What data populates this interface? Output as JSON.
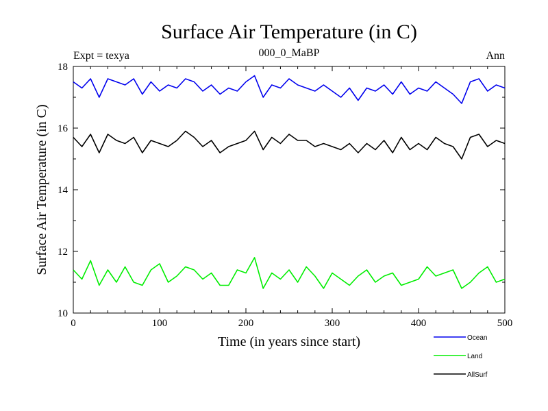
{
  "chart_data": {
    "type": "line",
    "title": "Surface Air Temperature (in C)",
    "subtitle_left": "Expt = texya",
    "subtitle_center": "000_0_MaBP",
    "subtitle_right": "Ann",
    "xlabel": "Time (in years since start)",
    "ylabel": "Surface Air Temperature (in C)",
    "xlim": [
      0,
      500
    ],
    "ylim": [
      10,
      18
    ],
    "xticks": [
      0,
      100,
      200,
      300,
      400,
      500
    ],
    "yticks": [
      10,
      12,
      14,
      16,
      18
    ],
    "grid": false,
    "legend_position": "bottom-right",
    "x": [
      0,
      10,
      20,
      30,
      40,
      50,
      60,
      70,
      80,
      90,
      100,
      110,
      120,
      130,
      140,
      150,
      160,
      170,
      180,
      190,
      200,
      210,
      220,
      230,
      240,
      250,
      260,
      270,
      280,
      290,
      300,
      310,
      320,
      330,
      340,
      350,
      360,
      370,
      380,
      390,
      400,
      410,
      420,
      430,
      440,
      450,
      460,
      470,
      480,
      490,
      500
    ],
    "series": [
      {
        "name": "Ocean",
        "color": "#0000ee",
        "values": [
          17.5,
          17.3,
          17.6,
          17.0,
          17.6,
          17.5,
          17.4,
          17.6,
          17.1,
          17.5,
          17.2,
          17.4,
          17.3,
          17.6,
          17.5,
          17.2,
          17.4,
          17.1,
          17.3,
          17.2,
          17.5,
          17.7,
          17.0,
          17.4,
          17.3,
          17.6,
          17.4,
          17.3,
          17.2,
          17.4,
          17.2,
          17.0,
          17.3,
          16.9,
          17.3,
          17.2,
          17.4,
          17.1,
          17.5,
          17.1,
          17.3,
          17.2,
          17.5,
          17.3,
          17.1,
          16.8,
          17.5,
          17.6,
          17.2,
          17.4,
          17.3
        ]
      },
      {
        "name": "Land",
        "color": "#00ee00",
        "values": [
          11.4,
          11.1,
          11.7,
          10.9,
          11.4,
          11.0,
          11.5,
          11.0,
          10.9,
          11.4,
          11.6,
          11.0,
          11.2,
          11.5,
          11.4,
          11.1,
          11.3,
          10.9,
          10.9,
          11.4,
          11.3,
          11.8,
          10.8,
          11.3,
          11.1,
          11.4,
          11.0,
          11.5,
          11.2,
          10.8,
          11.3,
          11.1,
          10.9,
          11.2,
          11.4,
          11.0,
          11.2,
          11.3,
          10.9,
          11.0,
          11.1,
          11.5,
          11.2,
          11.3,
          11.4,
          10.8,
          11.0,
          11.3,
          11.5,
          11.0,
          11.1
        ]
      },
      {
        "name": "AllSurf",
        "color": "#000000",
        "values": [
          15.7,
          15.4,
          15.8,
          15.2,
          15.8,
          15.6,
          15.5,
          15.7,
          15.2,
          15.6,
          15.5,
          15.4,
          15.6,
          15.9,
          15.7,
          15.4,
          15.6,
          15.2,
          15.4,
          15.5,
          15.6,
          15.9,
          15.3,
          15.7,
          15.5,
          15.8,
          15.6,
          15.6,
          15.4,
          15.5,
          15.4,
          15.3,
          15.5,
          15.2,
          15.5,
          15.3,
          15.6,
          15.2,
          15.7,
          15.3,
          15.5,
          15.3,
          15.7,
          15.5,
          15.4,
          15.0,
          15.7,
          15.8,
          15.4,
          15.6,
          15.5
        ]
      }
    ]
  }
}
